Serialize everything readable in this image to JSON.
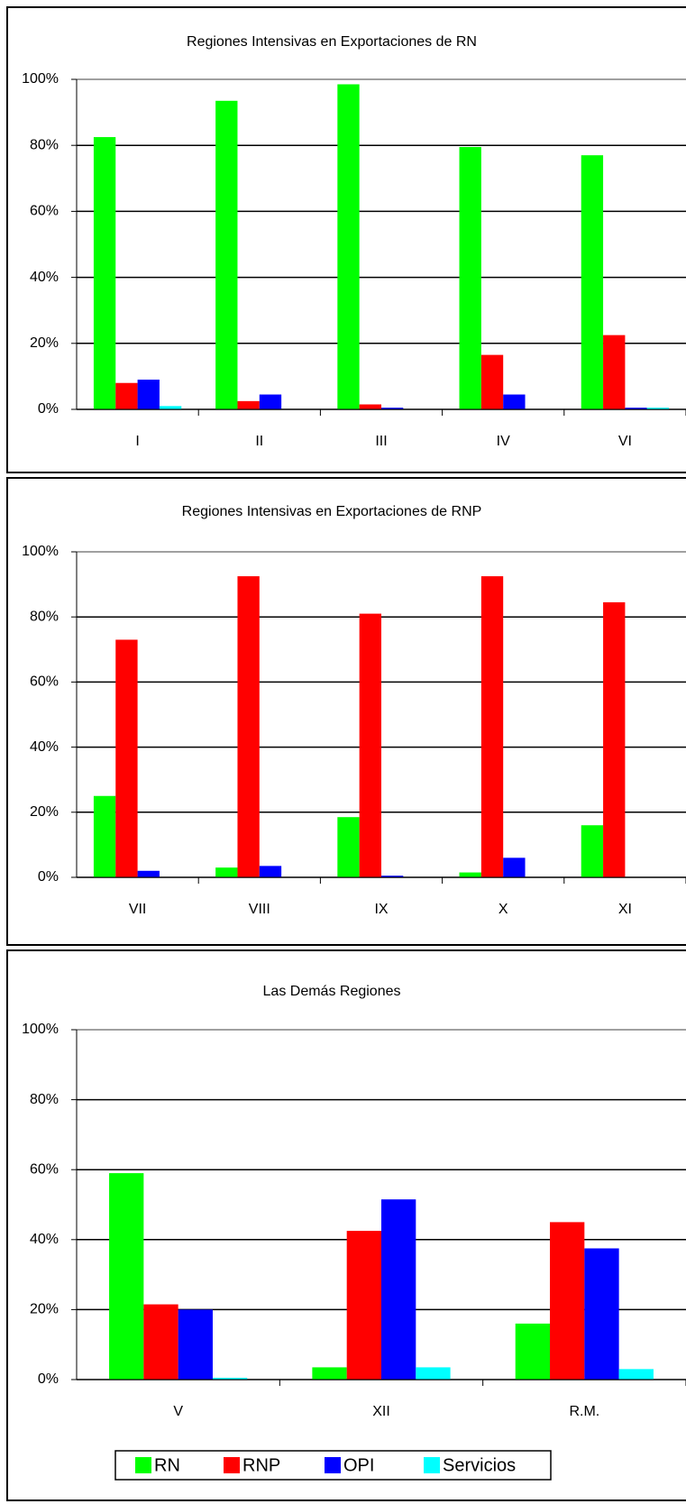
{
  "chart_data": [
    {
      "type": "bar",
      "title": "Regiones Intensivas en Exportaciones de RN",
      "categories": [
        "I",
        "II",
        "III",
        "IV",
        "VI"
      ],
      "series": [
        {
          "color": "#00ff00",
          "values": [
            82.5,
            93.5,
            98.5,
            79.5,
            77
          ]
        },
        {
          "color": "#ff0000",
          "values": [
            8,
            2.5,
            1.5,
            16.5,
            22.5
          ]
        },
        {
          "color": "#0000ff",
          "values": [
            9,
            4.5,
            0.5,
            4.5,
            0.5
          ]
        },
        {
          "color": "#00ffff",
          "values": [
            1,
            0,
            0,
            0,
            0.5
          ]
        }
      ],
      "ylim": [
        0,
        100
      ],
      "yticks": [
        {
          "value": 0,
          "label": "0%"
        },
        {
          "value": 20,
          "label": "20%"
        },
        {
          "value": 40,
          "label": "40%"
        },
        {
          "value": 60,
          "label": "60%"
        },
        {
          "value": 80,
          "label": "80%"
        },
        {
          "value": 100,
          "label": "100%"
        }
      ],
      "grid": true
    },
    {
      "type": "bar",
      "title": "Regiones Intensivas en Exportaciones de RNP",
      "categories": [
        "VII",
        "VIII",
        "IX",
        "X",
        "XI"
      ],
      "series": [
        {
          "color": "#00ff00",
          "values": [
            25,
            3,
            18.5,
            1.5,
            16
          ]
        },
        {
          "color": "#ff0000",
          "values": [
            73,
            92.5,
            81,
            92.5,
            84.5
          ]
        },
        {
          "color": "#0000ff",
          "values": [
            2,
            3.5,
            0.5,
            6,
            0
          ]
        },
        {
          "color": "#00ffff",
          "values": [
            0,
            0,
            0,
            0,
            0
          ]
        }
      ],
      "ylim": [
        0,
        100
      ],
      "yticks": [
        {
          "value": 0,
          "label": "0%"
        },
        {
          "value": 20,
          "label": "20%"
        },
        {
          "value": 40,
          "label": "40%"
        },
        {
          "value": 60,
          "label": "60%"
        },
        {
          "value": 80,
          "label": "80%"
        },
        {
          "value": 100,
          "label": "100%"
        }
      ],
      "grid": true
    },
    {
      "type": "bar",
      "title": "Las Demás Regiones",
      "categories": [
        "V",
        "XII",
        "R.M."
      ],
      "series": [
        {
          "name": "RN",
          "color": "#00ff00",
          "values": [
            59,
            3.5,
            16
          ]
        },
        {
          "name": "RNP",
          "color": "#ff0000",
          "values": [
            21.5,
            42.5,
            45
          ]
        },
        {
          "name": "OPI",
          "color": "#0000ff",
          "values": [
            20,
            51.5,
            37.5
          ]
        },
        {
          "name": "Servicios",
          "color": "#00ffff",
          "values": [
            0.5,
            3.5,
            3
          ]
        }
      ],
      "ylim": [
        0,
        100
      ],
      "yticks": [
        {
          "value": 0,
          "label": "0%"
        },
        {
          "value": 20,
          "label": "20%"
        },
        {
          "value": 40,
          "label": "40%"
        },
        {
          "value": 60,
          "label": "60%"
        },
        {
          "value": 80,
          "label": "80%"
        },
        {
          "value": 100,
          "label": "100%"
        }
      ],
      "grid": true
    }
  ]
}
